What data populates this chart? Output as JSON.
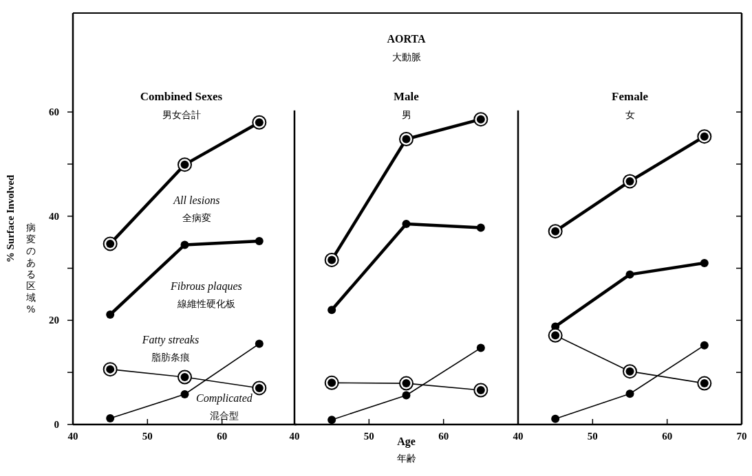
{
  "chart_data": [
    {
      "type": "line",
      "title": "Combined Sexes",
      "subtitle": "男女合計",
      "ylabel": "% Surface Involved",
      "annotations": [
        "病変のある区域%",
        "全病変",
        "線維性硬化板",
        "脂肪条痕",
        "混合型"
      ],
      "x": [
        45,
        55,
        65
      ],
      "xlim": [
        40,
        70
      ],
      "xticks": [
        40,
        50,
        60
      ],
      "ylim": [
        0,
        79
      ],
      "yticks": [
        0,
        {
          "value": 10,
          "label": null
        },
        20,
        {
          "value": 30,
          "label": null
        },
        40,
        {
          "value": 50,
          "label": null
        },
        60
      ],
      "marker": "circle",
      "series": [
        {
          "name": "All lesions",
          "color": "#000000",
          "values": [
            34.7,
            49.9,
            58.0
          ]
        },
        {
          "name": "Fibrous plaques",
          "color": "#000000",
          "values": [
            21.1,
            34.5,
            35.2
          ]
        },
        {
          "name": "Fatty streaks",
          "color": "#000000",
          "values": [
            10.6,
            9.1,
            7.0
          ]
        },
        {
          "name": "Complicated",
          "color": "#000000",
          "values": [
            1.2,
            5.8,
            15.5
          ]
        }
      ]
    },
    {
      "type": "line",
      "title": "Male",
      "subtitle": "男",
      "xlabel": "Age",
      "annotations": [
        "AORTA",
        "大動脈",
        "年齢"
      ],
      "x": [
        45,
        55,
        65
      ],
      "xlim": [
        40,
        70
      ],
      "xticks": [
        40,
        50,
        60
      ],
      "ylim": [
        0,
        79
      ],
      "tick_labels": "x",
      "marker": "circle",
      "series": [
        {
          "color": "#000000",
          "values": [
            31.6,
            54.8,
            58.6
          ]
        },
        {
          "color": "#000000",
          "values": [
            22.0,
            38.5,
            37.8
          ]
        },
        {
          "color": "#000000",
          "values": [
            8.0,
            7.9,
            6.6
          ]
        },
        {
          "color": "#000000",
          "values": [
            0.9,
            5.6,
            14.7
          ]
        }
      ]
    },
    {
      "type": "line",
      "title": "Female",
      "subtitle": "女",
      "x": [
        45,
        55,
        65
      ],
      "xlim": [
        40,
        70
      ],
      "xticks": [
        40,
        50,
        60,
        70
      ],
      "ylim": [
        0,
        79
      ],
      "yticks": [
        0,
        {
          "value": 10,
          "label": null
        },
        20,
        {
          "value": 30,
          "label": null
        },
        40,
        {
          "value": 50,
          "label": null
        },
        60
      ],
      "tick_labels": "x",
      "marker": "circle",
      "series": [
        {
          "color": "#000000",
          "values": [
            37.1,
            46.7,
            55.3
          ]
        },
        {
          "color": "#000000",
          "values": [
            18.8,
            28.8,
            31.0
          ]
        },
        {
          "color": "#000000",
          "values": [
            17.1,
            10.2,
            7.9
          ]
        },
        {
          "color": "#000000",
          "values": [
            1.1,
            5.9,
            15.2
          ]
        }
      ]
    }
  ]
}
